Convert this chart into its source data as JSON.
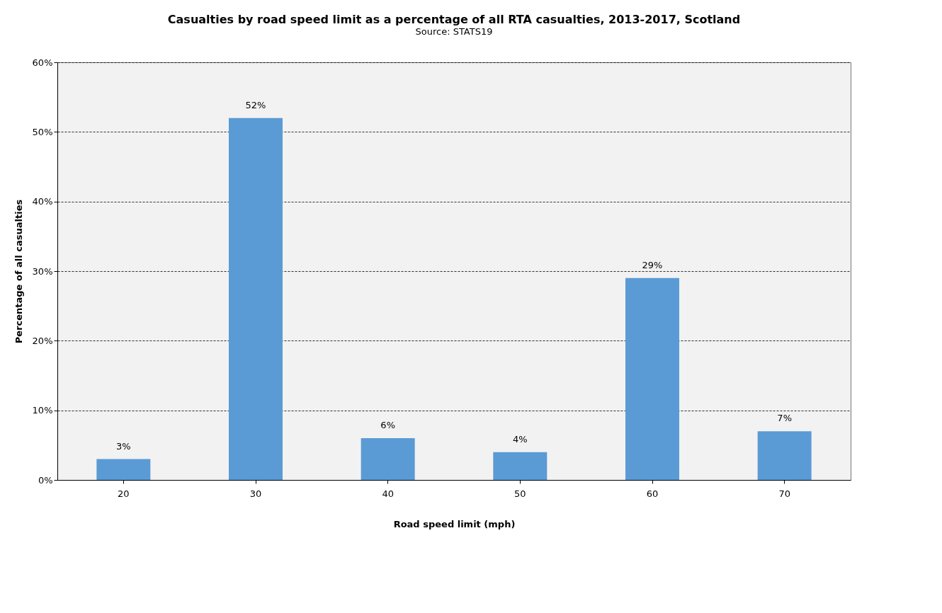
{
  "chart_data": {
    "type": "bar",
    "title": "Casualties by road speed limit as a percentage of all RTA casualties, 2013-2017, Scotland",
    "subtitle": "Source: STATS19",
    "xlabel": "Road speed limit (mph)",
    "ylabel": "Percentage of all casualties",
    "categories": [
      "20",
      "30",
      "40",
      "50",
      "60",
      "70"
    ],
    "values": [
      3,
      52,
      6,
      4,
      29,
      7
    ],
    "value_labels": [
      "3%",
      "52%",
      "6%",
      "4%",
      "29%",
      "7%"
    ],
    "color": "#5b9bd5",
    "ylim": [
      0,
      60
    ],
    "yticks": [
      {
        "value": 0,
        "label": "0%"
      },
      {
        "value": 10,
        "label": "10%"
      },
      {
        "value": 20,
        "label": "20%"
      },
      {
        "value": 30,
        "label": "30%"
      },
      {
        "value": 40,
        "label": "40%"
      },
      {
        "value": 50,
        "label": "50%"
      },
      {
        "value": 60,
        "label": "60%"
      }
    ],
    "grid": "y",
    "line_style": "dashed"
  }
}
